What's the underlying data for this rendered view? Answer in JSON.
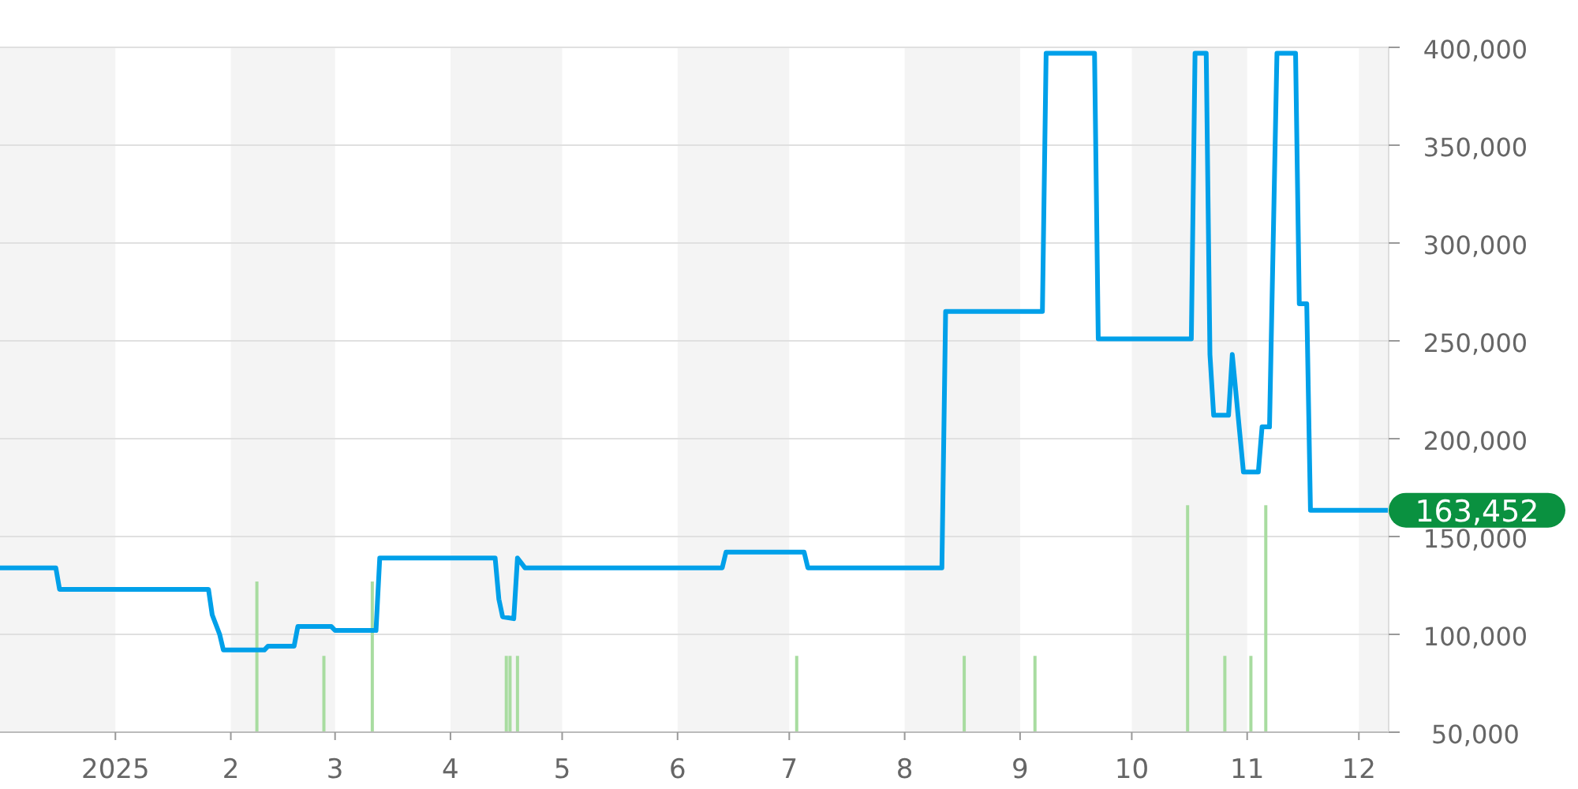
{
  "chart_data": {
    "type": "line",
    "xlim": [
      "2024-12-01",
      "2025-12-09"
    ],
    "ylim": [
      50000,
      400000
    ],
    "xticks": [
      {
        "value": "2025-01-01",
        "label": "2025"
      },
      {
        "value": "2025-02-01",
        "label": "2"
      },
      {
        "value": "2025-03-01",
        "label": "3"
      },
      {
        "value": "2025-04-01",
        "label": "4"
      },
      {
        "value": "2025-05-01",
        "label": "5"
      },
      {
        "value": "2025-06-01",
        "label": "6"
      },
      {
        "value": "2025-07-01",
        "label": "7"
      },
      {
        "value": "2025-08-01",
        "label": "8"
      },
      {
        "value": "2025-09-01",
        "label": "9"
      },
      {
        "value": "2025-10-01",
        "label": "10"
      },
      {
        "value": "2025-11-01",
        "label": "11"
      },
      {
        "value": "2025-12-01",
        "label": "12"
      }
    ],
    "yticks": [
      {
        "value": 50000,
        "label": "50,000"
      },
      {
        "value": 100000,
        "label": "100,000"
      },
      {
        "value": 150000,
        "label": "150,000"
      },
      {
        "value": 200000,
        "label": "200,000"
      },
      {
        "value": 250000,
        "label": "250,000"
      },
      {
        "value": 300000,
        "label": "300,000"
      },
      {
        "value": 350000,
        "label": "350,000"
      },
      {
        "value": 400000,
        "label": "400,000"
      }
    ],
    "grid": "y",
    "bands": [
      {
        "axis": "x",
        "from": "2024-12-01",
        "to": "2025-01-01",
        "color": "#f4f4f4"
      },
      {
        "axis": "x",
        "from": "2025-02-01",
        "to": "2025-03-01",
        "color": "#f4f4f4"
      },
      {
        "axis": "x",
        "from": "2025-04-01",
        "to": "2025-05-01",
        "color": "#f4f4f4"
      },
      {
        "axis": "x",
        "from": "2025-06-01",
        "to": "2025-07-01",
        "color": "#f4f4f4"
      },
      {
        "axis": "x",
        "from": "2025-08-01",
        "to": "2025-09-01",
        "color": "#f4f4f4"
      },
      {
        "axis": "x",
        "from": "2025-10-01",
        "to": "2025-11-01",
        "color": "#f4f4f4"
      },
      {
        "axis": "x",
        "from": "2025-12-01",
        "to": "2025-12-09",
        "color": "#f4f4f4"
      }
    ],
    "series": [
      {
        "type": "bar",
        "color": "#a8dca0",
        "x": [
          "2025-02-08",
          "2025-02-26",
          "2025-03-11",
          "2025-04-16",
          "2025-04-17",
          "2025-04-19",
          "2025-07-03",
          "2025-08-17",
          "2025-09-05",
          "2025-10-16",
          "2025-10-26",
          "2025-11-02",
          "2025-11-06"
        ],
        "values": [
          127000,
          89000,
          127000,
          89000,
          89000,
          89000,
          89000,
          89000,
          89000,
          166000,
          89000,
          89000,
          166000
        ]
      },
      {
        "color": "#00a0e9",
        "x": [
          "2024-12-01",
          "2024-12-16",
          "2024-12-17",
          "2025-01-26",
          "2025-01-27",
          "2025-01-29",
          "2025-01-30",
          "2025-02-10",
          "2025-02-11",
          "2025-02-18",
          "2025-02-19",
          "2025-02-28",
          "2025-03-01",
          "2025-03-12",
          "2025-03-13",
          "2025-04-13",
          "2025-04-14",
          "2025-04-15",
          "2025-04-18",
          "2025-04-19",
          "2025-04-21",
          "2025-06-13",
          "2025-06-14",
          "2025-07-05",
          "2025-07-06",
          "2025-08-11",
          "2025-08-12",
          "2025-09-07",
          "2025-09-08",
          "2025-09-21",
          "2025-09-22",
          "2025-10-17",
          "2025-10-18",
          "2025-10-21",
          "2025-10-22",
          "2025-10-23",
          "2025-10-27",
          "2025-10-28",
          "2025-10-31",
          "2025-11-04",
          "2025-11-05",
          "2025-11-07",
          "2025-11-09",
          "2025-11-14",
          "2025-11-15",
          "2025-11-17",
          "2025-11-18",
          "2025-12-09"
        ],
        "values": [
          134000,
          134000,
          123000,
          123000,
          110000,
          100000,
          92000,
          92000,
          94000,
          94000,
          104000,
          104000,
          102000,
          102000,
          139000,
          139000,
          118000,
          109000,
          108000,
          139000,
          134000,
          134000,
          142000,
          142000,
          134000,
          134000,
          265000,
          265000,
          397000,
          397000,
          251000,
          251000,
          397000,
          397000,
          243000,
          212000,
          212000,
          243000,
          183000,
          183000,
          206000,
          206000,
          397000,
          397000,
          269000,
          269000,
          163452,
          163452
        ]
      }
    ],
    "annotations": [
      {
        "text": "163,452",
        "x": "2025-12-09",
        "y": 163452
      }
    ]
  }
}
